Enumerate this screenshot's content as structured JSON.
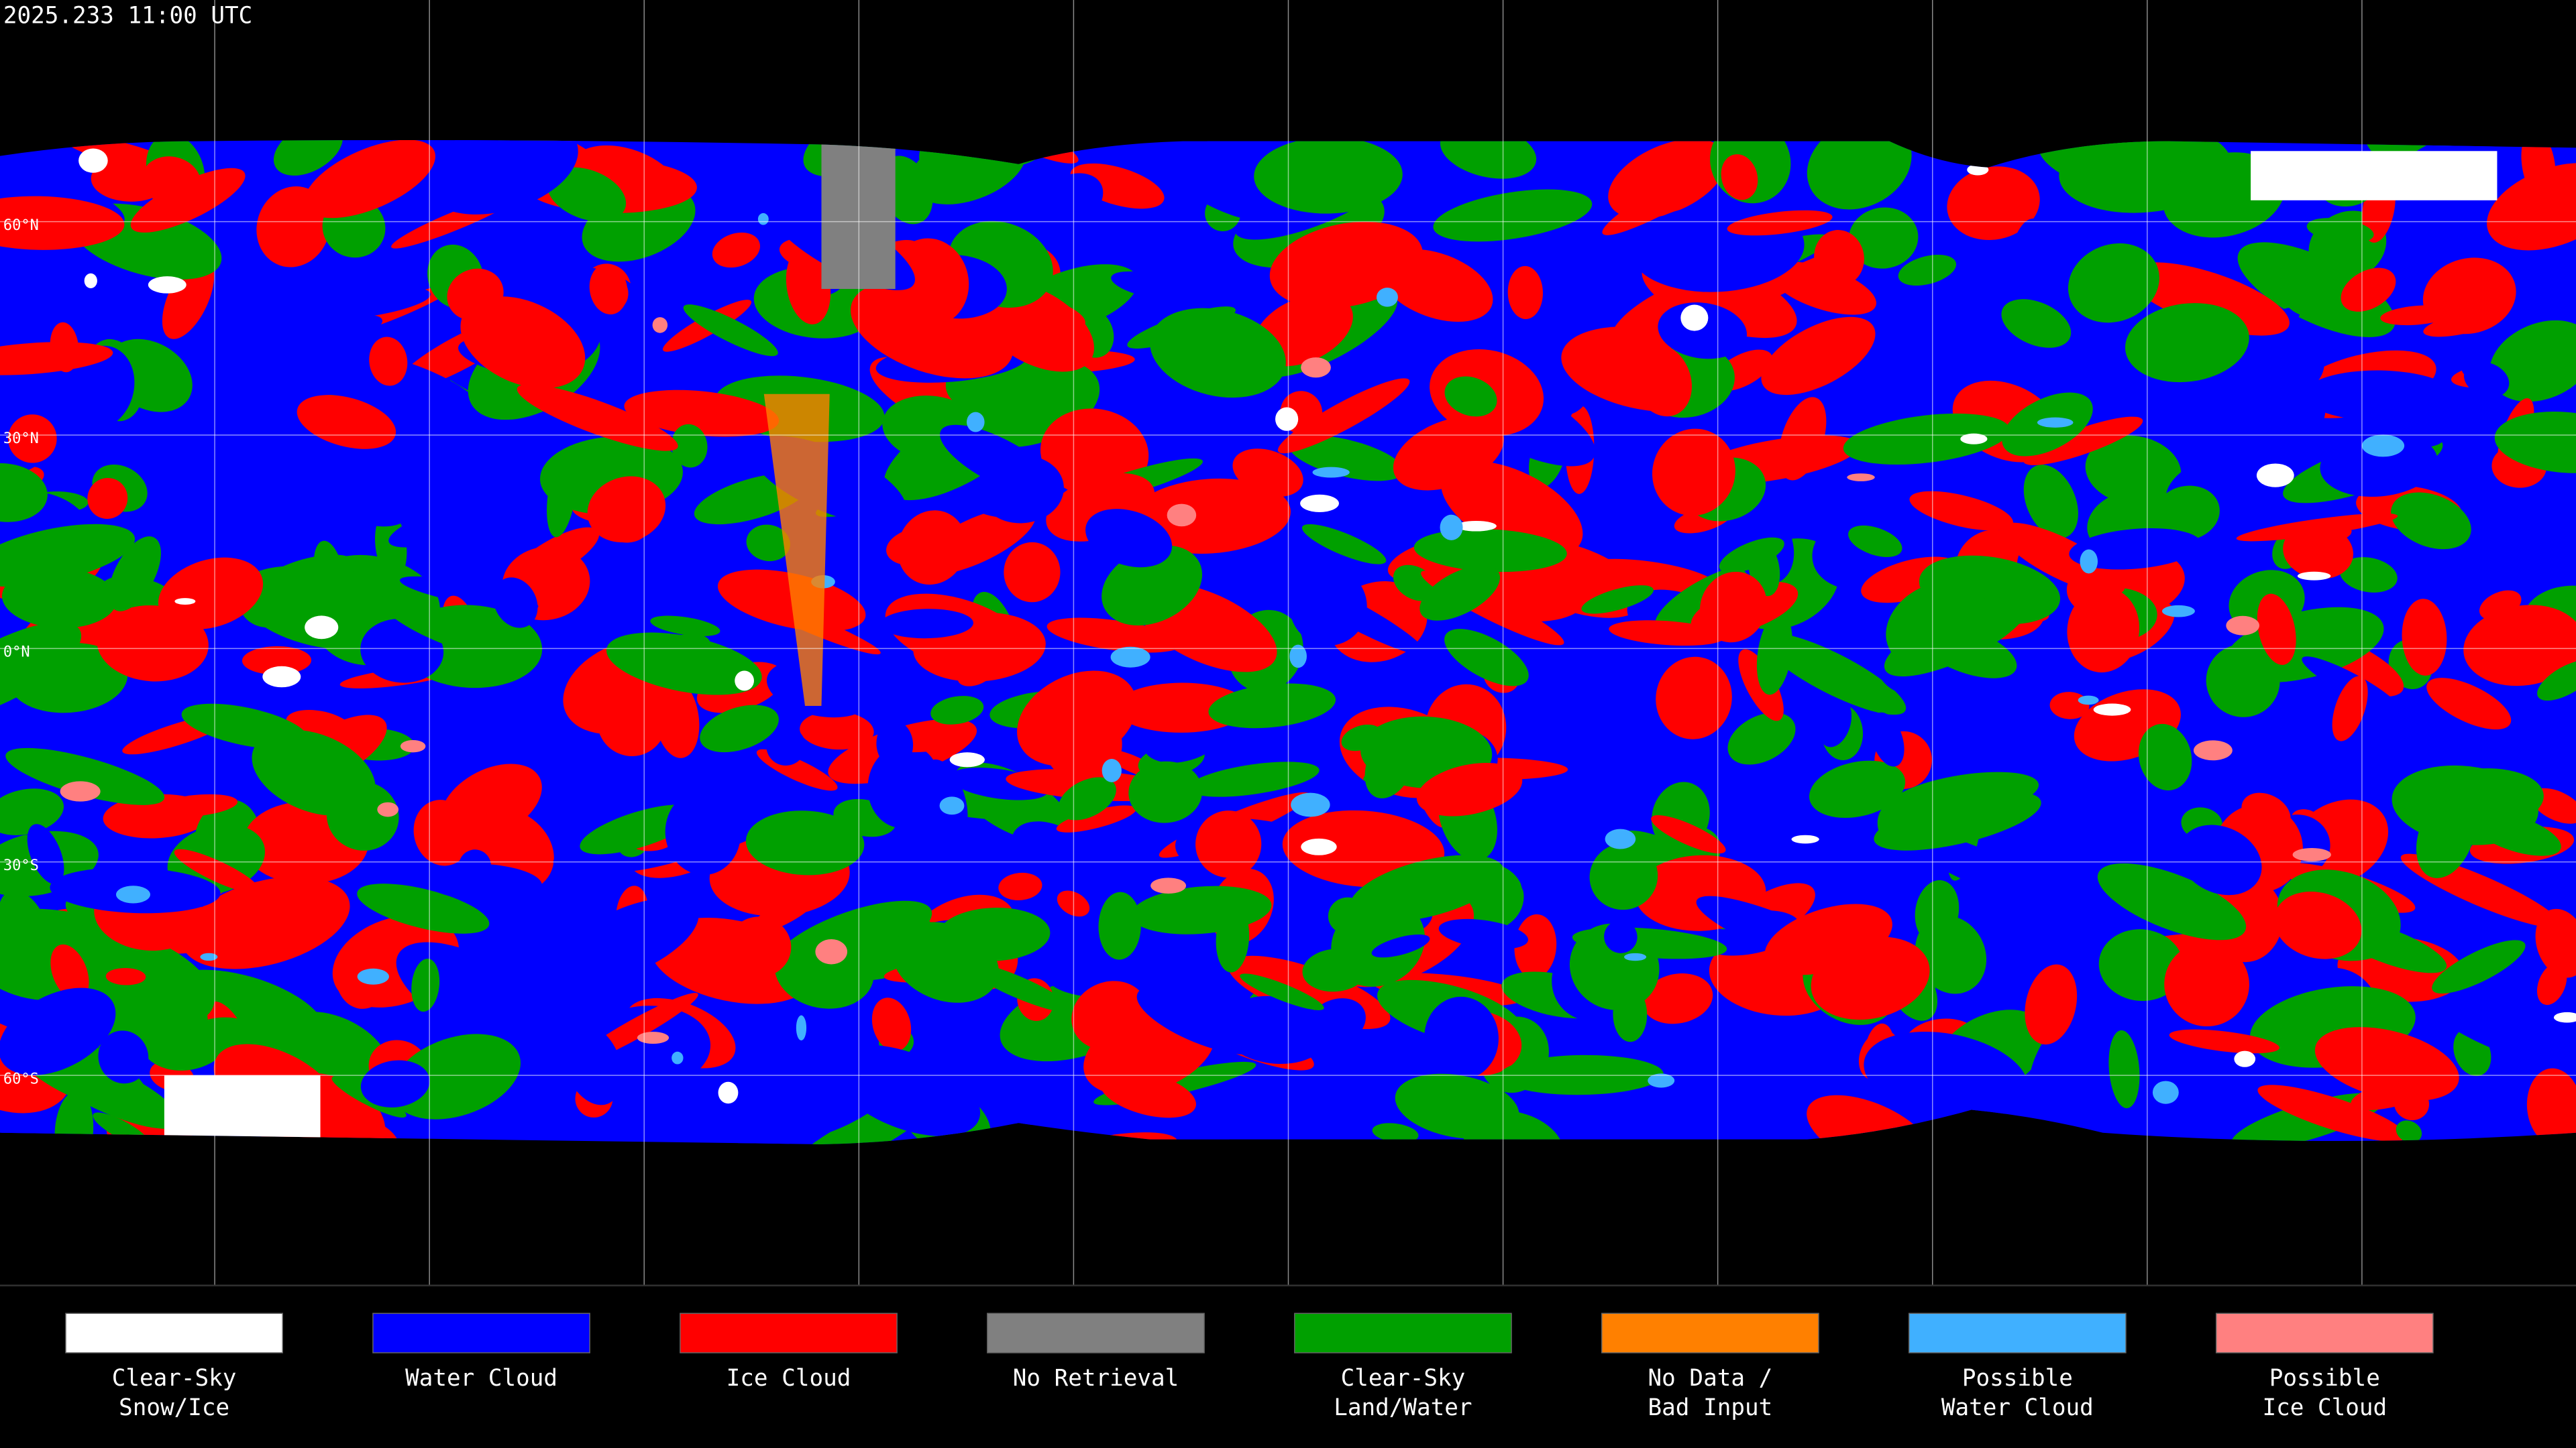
{
  "header": {
    "timestamp": "2025.233 11:00 UTC"
  },
  "map": {
    "lat_labels": [
      "60°N",
      "30°N",
      "0°N",
      "30°S",
      "60°S"
    ]
  },
  "legend": [
    {
      "lines": [
        "Clear-Sky",
        "Snow/Ice"
      ],
      "color": "#ffffff"
    },
    {
      "lines": [
        "Water Cloud"
      ],
      "color": "#0000ff"
    },
    {
      "lines": [
        "Ice Cloud"
      ],
      "color": "#ff0000"
    },
    {
      "lines": [
        "No Retrieval"
      ],
      "color": "#808080"
    },
    {
      "lines": [
        "Clear-Sky",
        "Land/Water"
      ],
      "color": "#00a000"
    },
    {
      "lines": [
        "No Data /",
        "Bad Input"
      ],
      "color": "#ff8000"
    },
    {
      "lines": [
        "Possible",
        "Water Cloud"
      ],
      "color": "#40b0ff"
    },
    {
      "lines": [
        "Possible",
        "Ice Cloud"
      ],
      "color": "#ff8080"
    }
  ]
}
